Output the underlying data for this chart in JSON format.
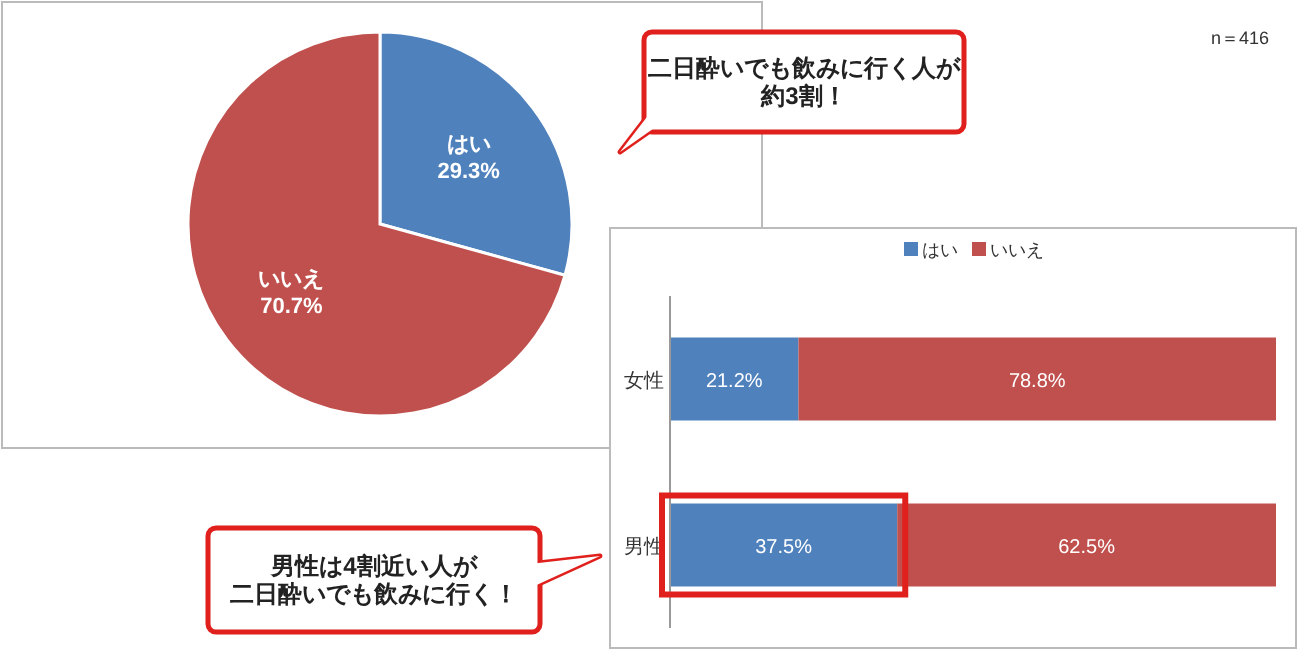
{
  "chart_data": [
    {
      "type": "pie",
      "categories": [
        "はい",
        "いいえ"
      ],
      "values": [
        29.3,
        70.7
      ],
      "colors": [
        "#4f81bd",
        "#c0504d"
      ],
      "value_labels": [
        "29.3%",
        "70.7%"
      ],
      "annotations": [
        "二日酔いでも飲みに行く人が約3割！",
        "n＝416"
      ]
    },
    {
      "type": "bar",
      "orientation": "horizontal",
      "stacked": true,
      "categories": [
        "女性",
        "男性"
      ],
      "series": [
        {
          "name": "はい",
          "color": "#4f81bd",
          "values": [
            21.2,
            37.5
          ],
          "value_labels": [
            "21.2%",
            "37.5%"
          ]
        },
        {
          "name": "いいえ",
          "color": "#c0504d",
          "values": [
            78.8,
            62.5
          ],
          "value_labels": [
            "78.8%",
            "62.5%"
          ]
        }
      ],
      "legend": "top",
      "annotations": [
        "男性は4割近い人が二日酔いでも飲みに行く！"
      ]
    }
  ]
}
